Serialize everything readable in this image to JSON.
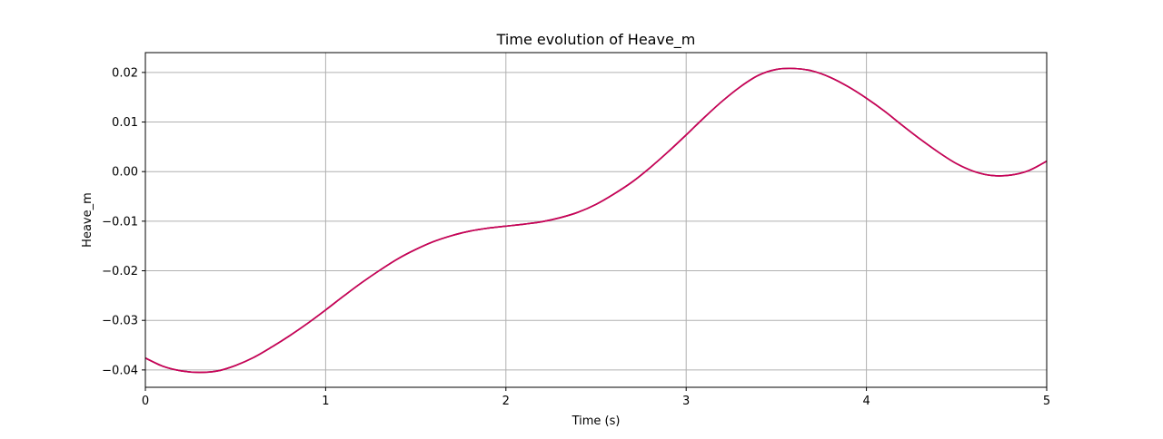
{
  "chart_data": {
    "type": "line",
    "title": "Time evolution of Heave_m",
    "xlabel": "Time (s)",
    "ylabel": "Heave_m",
    "xlim": [
      0,
      5
    ],
    "ylim": [
      -0.0435,
      0.024
    ],
    "grid": true,
    "legend": "none",
    "xticks": [
      0,
      1,
      2,
      3,
      4,
      5
    ],
    "xtick_labels": [
      "0",
      "1",
      "2",
      "3",
      "4",
      "5"
    ],
    "yticks": [
      -0.04,
      -0.03,
      -0.02,
      -0.01,
      0.0,
      0.01,
      0.02
    ],
    "ytick_labels": [
      "−0.04",
      "−0.03",
      "−0.02",
      "−0.01",
      "0.00",
      "0.01",
      "0.02"
    ],
    "series": [
      {
        "color": "#1f3dbf",
        "x": [
          0,
          0.1,
          0.2,
          0.3,
          0.4,
          0.5,
          0.6,
          0.7,
          0.8,
          0.9,
          1.0,
          1.1,
          1.2,
          1.3,
          1.4,
          1.5,
          1.6,
          1.7,
          1.8,
          1.9,
          2.0,
          2.1,
          2.2,
          2.3,
          2.4,
          2.5,
          2.6,
          2.7,
          2.8,
          2.9,
          3.0,
          3.1,
          3.2,
          3.3,
          3.4,
          3.5,
          3.6,
          3.7,
          3.8,
          3.9,
          4.0,
          4.1,
          4.2,
          4.3,
          4.4,
          4.5,
          4.6,
          4.7,
          4.8,
          4.9,
          5.0
        ],
        "y": [
          -0.0376,
          -0.0393,
          -0.0402,
          -0.0405,
          -0.0402,
          -0.0391,
          -0.0375,
          -0.0354,
          -0.0331,
          -0.0306,
          -0.0279,
          -0.0251,
          -0.0224,
          -0.0199,
          -0.0176,
          -0.0157,
          -0.0141,
          -0.0129,
          -0.012,
          -0.0114,
          -0.011,
          -0.0106,
          -0.0101,
          -0.0093,
          -0.0082,
          -0.0066,
          -0.0045,
          -0.0021,
          0.0008,
          0.004,
          0.0074,
          0.0109,
          0.0142,
          0.0171,
          0.0194,
          0.0206,
          0.0208,
          0.0203,
          0.019,
          0.0171,
          0.0148,
          0.0122,
          0.0093,
          0.0065,
          0.0039,
          0.0016,
          0.0,
          -0.0008,
          -0.0007,
          0.0002,
          0.0021
        ]
      },
      {
        "color": "#e8501b",
        "x": [
          0,
          0.1,
          0.2,
          0.3,
          0.4,
          0.5,
          0.6,
          0.7,
          0.8,
          0.9,
          1.0,
          1.1,
          1.2,
          1.3,
          1.4,
          1.5,
          1.6,
          1.7,
          1.8,
          1.9,
          2.0,
          2.1,
          2.2,
          2.3,
          2.4,
          2.5,
          2.6,
          2.7,
          2.8,
          2.9,
          3.0,
          3.1,
          3.2,
          3.3,
          3.4,
          3.5,
          3.6,
          3.7,
          3.8,
          3.9,
          4.0,
          4.1,
          4.2,
          4.3,
          4.4,
          4.5,
          4.6,
          4.7,
          4.8,
          4.9,
          5.0
        ],
        "y": [
          -0.0376,
          -0.0393,
          -0.0402,
          -0.0405,
          -0.0402,
          -0.0391,
          -0.0375,
          -0.0354,
          -0.0331,
          -0.0306,
          -0.0279,
          -0.0251,
          -0.0224,
          -0.0199,
          -0.0176,
          -0.0157,
          -0.0141,
          -0.0129,
          -0.012,
          -0.0114,
          -0.011,
          -0.0106,
          -0.0101,
          -0.0093,
          -0.0082,
          -0.0066,
          -0.0045,
          -0.0021,
          0.0008,
          0.004,
          0.0074,
          0.0109,
          0.0142,
          0.0171,
          0.0194,
          0.0206,
          0.0208,
          0.0203,
          0.019,
          0.0171,
          0.0148,
          0.0122,
          0.0093,
          0.0065,
          0.0039,
          0.0016,
          0.0,
          -0.0008,
          -0.0007,
          0.0002,
          0.0021
        ]
      },
      {
        "color": "#c8005a",
        "x": [
          0,
          0.1,
          0.2,
          0.3,
          0.4,
          0.5,
          0.6,
          0.7,
          0.8,
          0.9,
          1.0,
          1.1,
          1.2,
          1.3,
          1.4,
          1.5,
          1.6,
          1.7,
          1.8,
          1.9,
          2.0,
          2.1,
          2.2,
          2.3,
          2.4,
          2.5,
          2.6,
          2.7,
          2.8,
          2.9,
          3.0,
          3.1,
          3.2,
          3.3,
          3.4,
          3.5,
          3.6,
          3.7,
          3.8,
          3.9,
          4.0,
          4.1,
          4.2,
          4.3,
          4.4,
          4.5,
          4.6,
          4.7,
          4.8,
          4.9,
          5.0
        ],
        "y": [
          -0.0376,
          -0.0393,
          -0.0402,
          -0.0405,
          -0.0402,
          -0.0391,
          -0.0375,
          -0.0354,
          -0.0331,
          -0.0306,
          -0.0279,
          -0.0251,
          -0.0224,
          -0.0199,
          -0.0176,
          -0.0157,
          -0.0141,
          -0.0129,
          -0.012,
          -0.0114,
          -0.011,
          -0.0106,
          -0.0101,
          -0.0093,
          -0.0082,
          -0.0066,
          -0.0045,
          -0.0021,
          0.0008,
          0.004,
          0.0074,
          0.0109,
          0.0142,
          0.0171,
          0.0194,
          0.0206,
          0.0208,
          0.0203,
          0.019,
          0.0171,
          0.0148,
          0.0122,
          0.0093,
          0.0065,
          0.0039,
          0.0016,
          0.0,
          -0.0008,
          -0.0007,
          0.0002,
          0.0021
        ]
      }
    ]
  }
}
